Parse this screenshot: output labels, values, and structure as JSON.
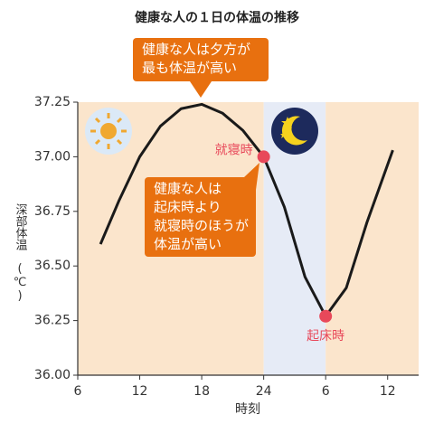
{
  "chart_data": {
    "type": "line",
    "title": "健康な人の１日の体温の推移",
    "x_label": "時刻",
    "y_label": "深部体温",
    "y_unit": "(℃)",
    "x": [
      8.2,
      10,
      12,
      14,
      16,
      18,
      20,
      22,
      24,
      26,
      28,
      30,
      32,
      34,
      36.5
    ],
    "series": [
      {
        "color": "#1a1a1a",
        "values": [
          36.6,
          36.8,
          37.0,
          37.14,
          37.22,
          37.24,
          37.2,
          37.12,
          37.0,
          36.77,
          36.45,
          36.27,
          36.4,
          36.7,
          37.03
        ]
      }
    ],
    "xlim": [
      6,
      39
    ],
    "ylim": [
      36.0,
      37.25
    ],
    "xticks": [
      6,
      12,
      18,
      24,
      {
        "value": 30,
        "label": "6"
      },
      {
        "value": 36,
        "label": "12"
      }
    ],
    "yticks": [
      {
        "value": 36.0,
        "label": "36.00"
      },
      36.25,
      {
        "value": 36.5,
        "label": "36.50"
      },
      36.75,
      {
        "value": 37.0,
        "label": "37.00"
      },
      37.25
    ],
    "bands": [
      {
        "from": 6,
        "to": 24,
        "color": "#fbe5cc"
      },
      {
        "from": 24,
        "to": 30,
        "color": "#e6ebf6"
      },
      {
        "from": 30,
        "to": 39,
        "color": "#fbe5cc"
      }
    ],
    "markers": [
      {
        "x": 24,
        "y": 37.0,
        "label": "就寝時",
        "color": "#e8485a"
      },
      {
        "x": 30,
        "y": 36.27,
        "label": "起床時",
        "color": "#e8485a"
      }
    ],
    "callouts": [
      {
        "lines": [
          "健康な人は夕方が",
          "最も体温が高い"
        ],
        "color": "#e8700f"
      },
      {
        "lines": [
          "健康な人は",
          "起床時より",
          "就寝時のほうが",
          "体温が高い"
        ],
        "color": "#e8700f"
      }
    ]
  }
}
